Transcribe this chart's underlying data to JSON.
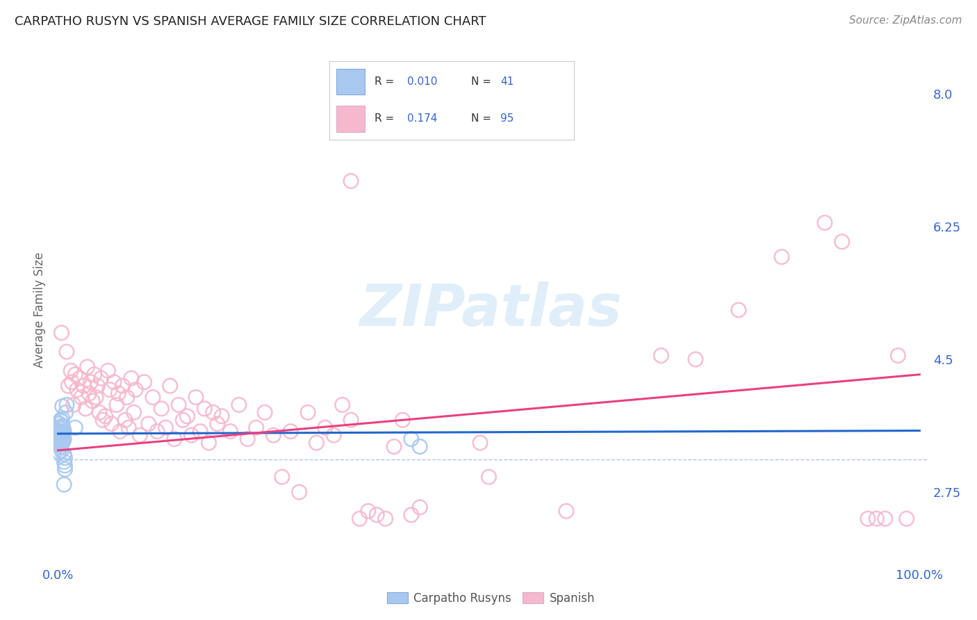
{
  "title": "CARPATHO RUSYN VS SPANISH AVERAGE FAMILY SIZE CORRELATION CHART",
  "source": "Source: ZipAtlas.com",
  "ylabel": "Average Family Size",
  "watermark": "ZIPatlas",
  "yticks": [
    2.75,
    4.5,
    6.25,
    8.0
  ],
  "ymin": 1.8,
  "ymax": 8.5,
  "xmin": -0.005,
  "xmax": 1.01,
  "legend_blue_R": "0.010",
  "legend_blue_N": "41",
  "legend_pink_R": "0.174",
  "legend_pink_N": "95",
  "blue_scatter_color": "#a8c8f0",
  "pink_scatter_color": "#f5b8cc",
  "blue_line_color": "#2266cc",
  "pink_line_color": "#e84080",
  "dashed_line_color": "#aac8ee",
  "label_color": "#3366cc",
  "blue_scatter": [
    [
      0.001,
      3.55
    ],
    [
      0.001,
      3.45
    ],
    [
      0.002,
      3.6
    ],
    [
      0.002,
      3.4
    ],
    [
      0.002,
      3.38
    ],
    [
      0.002,
      3.65
    ],
    [
      0.003,
      3.42
    ],
    [
      0.003,
      3.55
    ],
    [
      0.003,
      3.7
    ],
    [
      0.003,
      3.48
    ],
    [
      0.003,
      3.35
    ],
    [
      0.003,
      3.52
    ],
    [
      0.004,
      3.45
    ],
    [
      0.004,
      3.62
    ],
    [
      0.004,
      3.3
    ],
    [
      0.004,
      3.58
    ],
    [
      0.004,
      3.43
    ],
    [
      0.004,
      3.68
    ],
    [
      0.005,
      3.72
    ],
    [
      0.005,
      3.88
    ],
    [
      0.005,
      3.55
    ],
    [
      0.005,
      3.4
    ],
    [
      0.005,
      3.5
    ],
    [
      0.006,
      3.42
    ],
    [
      0.006,
      3.6
    ],
    [
      0.006,
      3.48
    ],
    [
      0.006,
      3.52
    ],
    [
      0.007,
      3.45
    ],
    [
      0.007,
      3.55
    ],
    [
      0.007,
      3.25
    ],
    [
      0.007,
      3.15
    ],
    [
      0.007,
      2.85
    ],
    [
      0.008,
      3.1
    ],
    [
      0.008,
      3.2
    ],
    [
      0.008,
      3.05
    ],
    [
      0.009,
      3.8
    ],
    [
      0.01,
      3.9
    ],
    [
      0.02,
      3.6
    ],
    [
      0.41,
      3.45
    ],
    [
      0.42,
      3.35
    ],
    [
      0.001,
      3.28
    ]
  ],
  "pink_scatter": [
    [
      0.004,
      4.85
    ],
    [
      0.01,
      4.6
    ],
    [
      0.012,
      4.15
    ],
    [
      0.015,
      4.35
    ],
    [
      0.016,
      4.2
    ],
    [
      0.018,
      3.9
    ],
    [
      0.02,
      4.3
    ],
    [
      0.022,
      4.1
    ],
    [
      0.025,
      4.25
    ],
    [
      0.027,
      4.0
    ],
    [
      0.03,
      4.15
    ],
    [
      0.032,
      3.85
    ],
    [
      0.034,
      4.4
    ],
    [
      0.036,
      4.05
    ],
    [
      0.038,
      4.2
    ],
    [
      0.04,
      3.95
    ],
    [
      0.042,
      4.3
    ],
    [
      0.044,
      4.0
    ],
    [
      0.046,
      4.15
    ],
    [
      0.048,
      3.8
    ],
    [
      0.05,
      4.25
    ],
    [
      0.052,
      3.7
    ],
    [
      0.055,
      3.75
    ],
    [
      0.058,
      4.35
    ],
    [
      0.06,
      4.1
    ],
    [
      0.062,
      3.65
    ],
    [
      0.065,
      4.2
    ],
    [
      0.068,
      3.9
    ],
    [
      0.07,
      4.05
    ],
    [
      0.072,
      3.55
    ],
    [
      0.075,
      4.15
    ],
    [
      0.078,
      3.7
    ],
    [
      0.08,
      4.0
    ],
    [
      0.082,
      3.6
    ],
    [
      0.085,
      4.25
    ],
    [
      0.088,
      3.8
    ],
    [
      0.09,
      4.1
    ],
    [
      0.095,
      3.5
    ],
    [
      0.1,
      4.2
    ],
    [
      0.105,
      3.65
    ],
    [
      0.11,
      4.0
    ],
    [
      0.115,
      3.55
    ],
    [
      0.12,
      3.85
    ],
    [
      0.125,
      3.6
    ],
    [
      0.13,
      4.15
    ],
    [
      0.135,
      3.45
    ],
    [
      0.14,
      3.9
    ],
    [
      0.145,
      3.7
    ],
    [
      0.15,
      3.75
    ],
    [
      0.155,
      3.5
    ],
    [
      0.16,
      4.0
    ],
    [
      0.165,
      3.55
    ],
    [
      0.17,
      3.85
    ],
    [
      0.175,
      3.4
    ],
    [
      0.18,
      3.8
    ],
    [
      0.185,
      3.65
    ],
    [
      0.19,
      3.75
    ],
    [
      0.2,
      3.55
    ],
    [
      0.21,
      3.9
    ],
    [
      0.22,
      3.45
    ],
    [
      0.23,
      3.6
    ],
    [
      0.24,
      3.8
    ],
    [
      0.25,
      3.5
    ],
    [
      0.26,
      2.95
    ],
    [
      0.27,
      3.55
    ],
    [
      0.28,
      2.75
    ],
    [
      0.29,
      3.8
    ],
    [
      0.3,
      3.4
    ],
    [
      0.31,
      3.6
    ],
    [
      0.32,
      3.5
    ],
    [
      0.33,
      3.9
    ],
    [
      0.34,
      3.7
    ],
    [
      0.35,
      2.4
    ],
    [
      0.36,
      2.5
    ],
    [
      0.37,
      2.45
    ],
    [
      0.38,
      2.4
    ],
    [
      0.39,
      3.35
    ],
    [
      0.4,
      3.7
    ],
    [
      0.41,
      2.45
    ],
    [
      0.42,
      2.55
    ],
    [
      0.49,
      3.4
    ],
    [
      0.5,
      2.95
    ],
    [
      0.59,
      2.5
    ],
    [
      0.7,
      4.55
    ],
    [
      0.74,
      4.5
    ],
    [
      0.79,
      5.15
    ],
    [
      0.84,
      5.85
    ],
    [
      0.89,
      6.3
    ],
    [
      0.91,
      6.05
    ],
    [
      0.94,
      2.4
    ],
    [
      0.95,
      2.4
    ],
    [
      0.96,
      2.4
    ],
    [
      0.34,
      6.85
    ],
    [
      0.975,
      4.55
    ],
    [
      0.985,
      2.4
    ]
  ],
  "blue_line": {
    "x0": 0.0,
    "y0": 3.52,
    "x1": 1.0,
    "y1": 3.56
  },
  "pink_line": {
    "x0": 0.0,
    "y0": 3.3,
    "x1": 1.0,
    "y1": 4.3
  },
  "dashed_line_y": 3.18,
  "background_color": "#ffffff",
  "grid_color": "#dddddd",
  "title_color": "#222222",
  "xtick_color": "#3366cc",
  "ytick_color": "#3366cc"
}
